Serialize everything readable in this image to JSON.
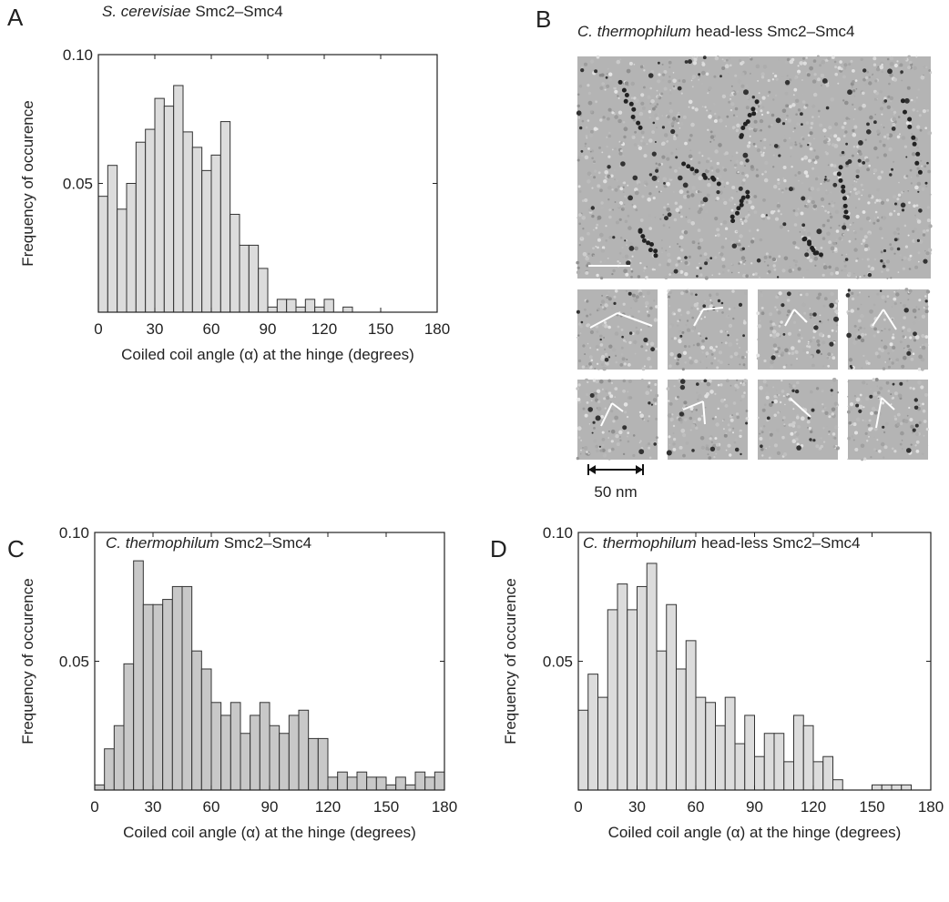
{
  "panel_labels": [
    "A",
    "B",
    "C",
    "D"
  ],
  "micrograph": {
    "species": "C. thermophilum",
    "title": "head-less Smc2–Smc4",
    "scale_bar": "50 nm"
  },
  "chart_data": [
    {
      "type": "histogram",
      "species": "S. cerevisiae",
      "title": "Smc2–Smc4",
      "x_label": "Coiled coil angle (α) at the hinge (degrees)",
      "y_label": "Frequency of occurence",
      "bins": [
        0,
        5,
        10,
        15,
        20,
        25,
        30,
        35,
        40,
        45,
        50,
        55,
        60,
        65,
        70,
        75,
        80,
        85,
        90,
        95,
        100,
        105,
        110,
        115,
        120,
        125,
        130,
        135,
        140,
        145,
        150,
        155,
        160,
        165,
        170,
        175,
        180
      ],
      "values": [
        0.045,
        0.057,
        0.04,
        0.05,
        0.066,
        0.071,
        0.083,
        0.08,
        0.088,
        0.07,
        0.064,
        0.055,
        0.061,
        0.074,
        0.038,
        0.026,
        0.026,
        0.017,
        0.002,
        0.005,
        0.005,
        0.002,
        0.005,
        0.002,
        0.005,
        0,
        0.002,
        0,
        0,
        0,
        0,
        0,
        0,
        0,
        0,
        0
      ],
      "color": "#dcdcdc",
      "xlim": [
        0,
        180
      ],
      "ylim": [
        0,
        0.1
      ],
      "xticks": [
        0,
        30,
        60,
        90,
        120,
        150,
        180
      ],
      "yticks": [
        0.05,
        {
          "value": 0.1,
          "label": "0.10"
        }
      ]
    },
    {
      "type": "histogram",
      "species": "C. thermophilum",
      "title": "Smc2–Smc4",
      "x_label": "Coiled coil angle (α) at the hinge (degrees)",
      "y_label": "Frequency of occurence",
      "bins": [
        0,
        5,
        10,
        15,
        20,
        25,
        30,
        35,
        40,
        45,
        50,
        55,
        60,
        65,
        70,
        75,
        80,
        85,
        90,
        95,
        100,
        105,
        110,
        115,
        120,
        125,
        130,
        135,
        140,
        145,
        150,
        155,
        160,
        165,
        170,
        175,
        180
      ],
      "values": [
        0.002,
        0.016,
        0.025,
        0.049,
        0.089,
        0.072,
        0.072,
        0.074,
        0.079,
        0.079,
        0.054,
        0.047,
        0.034,
        0.029,
        0.034,
        0.022,
        0.029,
        0.034,
        0.025,
        0.022,
        0.029,
        0.031,
        0.02,
        0.02,
        0.005,
        0.007,
        0.005,
        0.007,
        0.005,
        0.005,
        0.002,
        0.005,
        0.002,
        0.007,
        0.005,
        0.007
      ],
      "color": "#c8c8c8",
      "xlim": [
        0,
        180
      ],
      "ylim": [
        0,
        0.1
      ],
      "xticks": [
        0,
        30,
        60,
        90,
        120,
        150,
        180
      ],
      "yticks": [
        0.05,
        {
          "value": 0.1,
          "label": "0.10"
        }
      ]
    },
    {
      "type": "histogram",
      "species": "C. thermophilum",
      "title": "head-less Smc2–Smc4",
      "x_label": "Coiled coil angle (α) at the hinge (degrees)",
      "y_label": "Frequency of occurence",
      "bins": [
        0,
        5,
        10,
        15,
        20,
        25,
        30,
        35,
        40,
        45,
        50,
        55,
        60,
        65,
        70,
        75,
        80,
        85,
        90,
        95,
        100,
        105,
        110,
        115,
        120,
        125,
        130,
        135,
        140,
        145,
        150,
        155,
        160,
        165,
        170,
        175,
        180
      ],
      "values": [
        0.031,
        0.045,
        0.036,
        0.07,
        0.08,
        0.07,
        0.079,
        0.088,
        0.054,
        0.072,
        0.047,
        0.058,
        0.036,
        0.034,
        0.025,
        0.036,
        0.018,
        0.029,
        0.013,
        0.022,
        0.022,
        0.011,
        0.029,
        0.025,
        0.011,
        0.013,
        0.004,
        0,
        0,
        0,
        0.002,
        0.002,
        0.002,
        0.002,
        0,
        0
      ],
      "color": "#dcdcdc",
      "xlim": [
        0,
        180
      ],
      "ylim": [
        0,
        0.1
      ],
      "xticks": [
        0,
        30,
        60,
        90,
        120,
        150,
        180
      ],
      "yticks": [
        0.05,
        {
          "value": 0.1,
          "label": "0.10"
        }
      ]
    }
  ]
}
